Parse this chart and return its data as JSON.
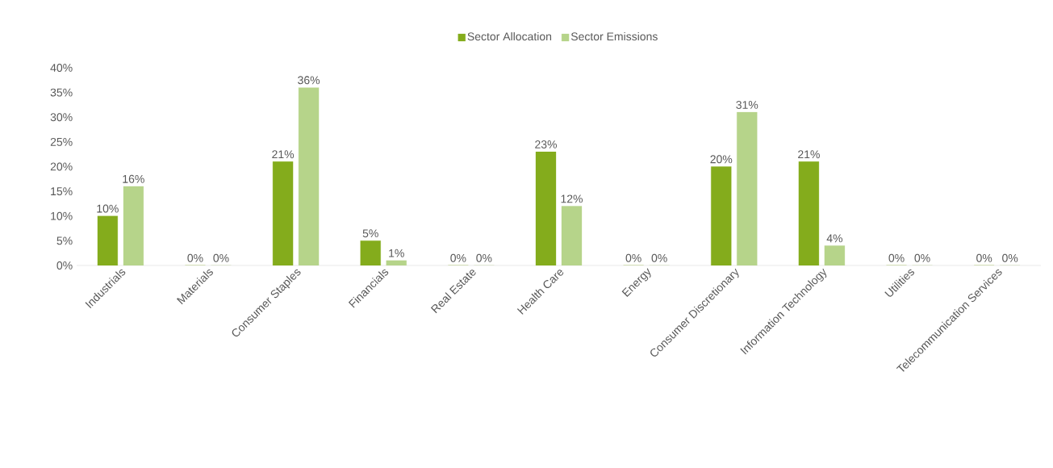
{
  "chart_data": {
    "type": "bar",
    "categories": [
      "Industrials",
      "Materials",
      "Consumer Staples",
      "Financials",
      "Real Estate",
      "Health Care",
      "Energy",
      "Consumer Discretionary",
      "Information Technology",
      "Utilities",
      "Telecommunication Services"
    ],
    "series": [
      {
        "name": "Sector Allocation",
        "color": "#84ac1c",
        "values": [
          10,
          0,
          21,
          5,
          0,
          23,
          0,
          20,
          21,
          0,
          0
        ],
        "value_labels": [
          "10%",
          "0%",
          "21%",
          "5%",
          "0%",
          "23%",
          "0%",
          "20%",
          "21%",
          "0%",
          "0%"
        ]
      },
      {
        "name": "Sector Emissions",
        "color": "#b6d48a",
        "values": [
          16,
          0,
          36,
          1,
          0,
          12,
          0,
          31,
          4,
          0,
          0
        ],
        "value_labels": [
          "16%",
          "0%",
          "36%",
          "1%",
          "0%",
          "12%",
          "0%",
          "31%",
          "4%",
          "0%",
          "0%"
        ]
      }
    ],
    "ylim": [
      0,
      40
    ],
    "yticks": [
      {
        "value": 0,
        "label": "0%"
      },
      {
        "value": 5,
        "label": "5%"
      },
      {
        "value": 10,
        "label": "10%"
      },
      {
        "value": 15,
        "label": "15%"
      },
      {
        "value": 20,
        "label": "20%"
      },
      {
        "value": 25,
        "label": "25%"
      },
      {
        "value": 30,
        "label": "30%"
      },
      {
        "value": 35,
        "label": "35%"
      },
      {
        "value": 40,
        "label": "40%"
      }
    ],
    "legend": "top"
  }
}
